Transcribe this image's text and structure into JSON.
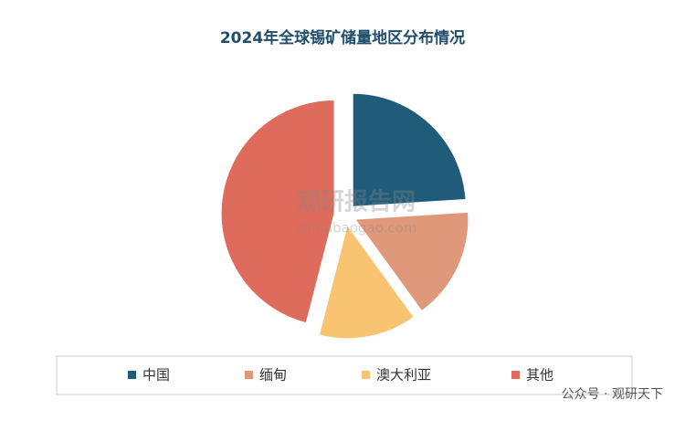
{
  "chart_data": {
    "type": "pie",
    "title": "2024年全球锡矿储量地区分布情况",
    "categories": [
      "中国",
      "缅甸",
      "澳大利亚",
      "其他"
    ],
    "values": [
      24,
      16,
      14,
      46
    ],
    "colors": [
      "#1e5c7a",
      "#e0987a",
      "#f8c471",
      "#de6b5c"
    ],
    "legend": "bottom"
  },
  "watermark": {
    "name": "观研报告网",
    "url": "chinabaogao.com",
    "source": "公众号 · 观研天下"
  }
}
